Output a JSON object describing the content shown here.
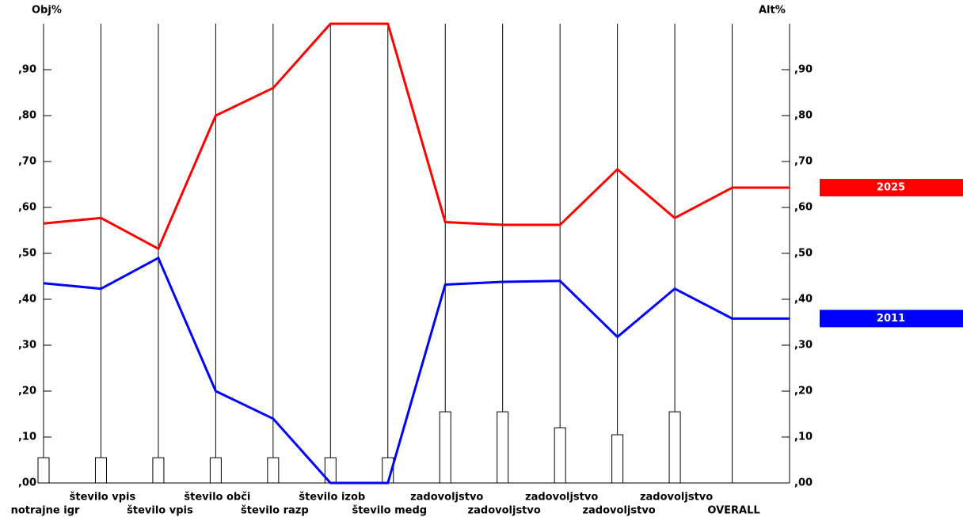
{
  "chart_data": {
    "type": "line",
    "y_label": "Obj%",
    "y2_label": "Alt%",
    "categories": [
      "notrajne igr",
      "število vpis",
      "število vpis",
      "število obči",
      "število razp",
      "število izob",
      "število medg",
      "zadovoljstvo",
      "zadovoljstvo",
      "zadovoljstvo",
      "zadovoljstvo",
      "zadovoljstvo",
      "OVERALL"
    ],
    "series": [
      {
        "name": "2025",
        "color": "#ff0000",
        "values": [
          0.565,
          0.577,
          0.51,
          0.8,
          0.86,
          1.0,
          1.0,
          0.568,
          0.562,
          0.562,
          0.683,
          0.577,
          0.643
        ]
      },
      {
        "name": "2011",
        "color": "#0000ff",
        "values": [
          0.435,
          0.423,
          0.49,
          0.2,
          0.14,
          0.0,
          0.0,
          0.432,
          0.438,
          0.44,
          0.318,
          0.423,
          0.358
        ]
      }
    ],
    "weights": [
      0.055,
      0.055,
      0.055,
      0.055,
      0.055,
      0.055,
      0.055,
      0.155,
      0.155,
      0.12,
      0.105,
      0.155,
      null
    ],
    "ylim": [
      0,
      1
    ],
    "yticks": [
      {
        "value": 0,
        "label": ",00"
      },
      {
        "value": 0.1,
        "label": ",10"
      },
      {
        "value": 0.2,
        "label": ",20"
      },
      {
        "value": 0.3,
        "label": ",30"
      },
      {
        "value": 0.4,
        "label": ",40"
      },
      {
        "value": 0.5,
        "label": ",50"
      },
      {
        "value": 0.6,
        "label": ",60"
      },
      {
        "value": 0.7,
        "label": ",70"
      },
      {
        "value": 0.8,
        "label": ",80"
      },
      {
        "value": 0.9,
        "label": ",90"
      }
    ]
  }
}
